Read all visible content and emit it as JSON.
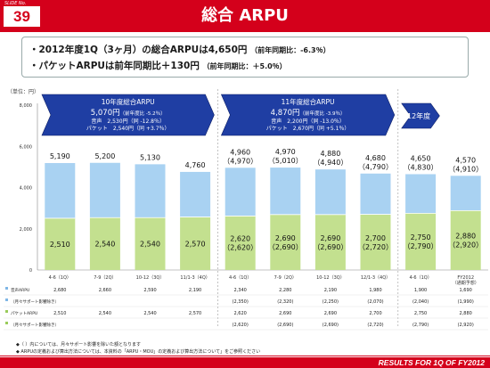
{
  "header": {
    "slide_no_label": "SLIDE No.",
    "slide_no": "39",
    "title": "総合 ARPU"
  },
  "bullets": [
    {
      "main": "・2012年度1Q（3ヶ月）の総合ARPUは4,650円",
      "note": "（前年同期比：-6.3％）"
    },
    {
      "main": "・パケットARPUは前年同期比＋130円",
      "note": "（前年同期比：＋5.0％）"
    }
  ],
  "unit_label": "（単位：円）",
  "chart_data": {
    "type": "bar",
    "stacked": true,
    "categories": [
      "4-6（1Q）",
      "7-9（2Q）",
      "10-12（3Q）",
      "11/1-3（4Q）",
      "4-6（1Q）",
      "7-9（2Q）",
      "10-12（3Q）",
      "12/1-3（4Q）",
      "4-6（1Q）",
      "FY2012\n（通期予想）"
    ],
    "ylim": [
      0,
      8000
    ],
    "yticks": [
      "0",
      "2,000",
      "4,000",
      "6,000",
      "8,000"
    ],
    "series": [
      {
        "name": "パケットARPU",
        "values": [
          2510,
          2540,
          2540,
          2570,
          2620,
          2690,
          2690,
          2700,
          2750,
          2880
        ]
      },
      {
        "name": "音声ARPU",
        "values": [
          2680,
          2660,
          2590,
          2190,
          2340,
          2280,
          2190,
          1980,
          1900,
          1690
        ]
      }
    ],
    "total_labels": [
      "5,190",
      "5,200",
      "5,130",
      "4,760",
      "4,960",
      "4,970",
      "4,880",
      "4,680",
      "4,650",
      "4,570"
    ],
    "total_sub": [
      "",
      "",
      "",
      "",
      "（4,970）",
      "（5,010）",
      "（4,940）",
      "（4,790）",
      "（4,830）",
      "（4,910）"
    ],
    "packet_labels": [
      "2,510",
      "2,540",
      "2,540",
      "2,570",
      "2,620",
      "2,690",
      "2,690",
      "2,700",
      "2,750",
      "2,880"
    ],
    "packet_sub": [
      "",
      "",
      "",
      "",
      "（2,620）",
      "（2,690）",
      "（2,690）",
      "（2,720）",
      "（2,790）",
      "（2,920）"
    ],
    "colors": {
      "packet": "#c3e08f",
      "voice": "#a9d2f2",
      "banner": "#1f3ea3"
    }
  },
  "banners": [
    {
      "title": "10年度総合ARPU",
      "value": "5,070円",
      "value_note": "（前年度比 -5.2％）",
      "lines": [
        "音声　2,530円（同 -12.8％）",
        "パケット　2,540円（同 +3.7％）"
      ]
    },
    {
      "title": "11年度総合ARPU",
      "value": "4,870円",
      "value_note": "（前年度比 -3.9％）",
      "lines": [
        "音声　2,200円（同 -13.0％）",
        "パケット　2,670円（同 +5.1％）"
      ]
    },
    {
      "title": "12年度",
      "value": "",
      "value_note": "",
      "lines": []
    }
  ],
  "table": {
    "rows": [
      {
        "label": "音声ARPU",
        "cells": [
          "2,680",
          "2,660",
          "2,590",
          "2,190",
          "2,340",
          "2,280",
          "2,190",
          "1,980",
          "1,900",
          "1,690"
        ]
      },
      {
        "label": "（月々サポート影響除き）",
        "cells": [
          "",
          "",
          "",
          "",
          "(2,350)",
          "(2,320)",
          "(2,250)",
          "(2,070)",
          "(2,040)",
          "(1,990)"
        ]
      },
      {
        "label": "パケットARPU",
        "cells": [
          "2,510",
          "2,540",
          "2,540",
          "2,570",
          "2,620",
          "2,690",
          "2,690",
          "2,700",
          "2,750",
          "2,880"
        ]
      },
      {
        "label": "（月々サポート影響除き）",
        "cells": [
          "",
          "",
          "",
          "",
          "(2,620)",
          "(2,690)",
          "(2,690)",
          "(2,720)",
          "(2,790)",
          "(2,920)"
        ]
      }
    ]
  },
  "notes": [
    "◆（ ）内については、月々サポート影響を除いた額となります",
    "◆ ARPUの定義および算出方法については、本資料の「ARPU・MOU」の定義および算出方法について」をご参照ください"
  ],
  "footer": "RESULTS FOR 1Q OF FY2012"
}
